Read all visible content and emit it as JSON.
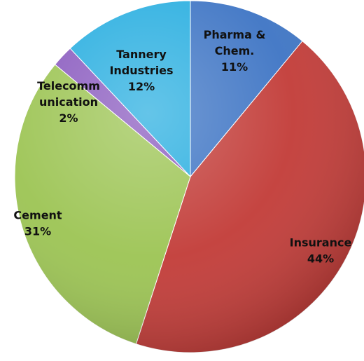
{
  "chart_data": {
    "type": "pie",
    "title": "",
    "slices": [
      {
        "label_lines": [
          "Pharma &",
          "Chem."
        ],
        "value_text": "11%",
        "value": 11,
        "color": "#3d74c4"
      },
      {
        "label_lines": [
          "Insurance"
        ],
        "value_text": "44%",
        "value": 44,
        "color": "#c23b37"
      },
      {
        "label_lines": [
          "Cement"
        ],
        "value_text": "31%",
        "value": 31,
        "color": "#9cc453"
      },
      {
        "label_lines": [
          "Telecomm",
          "unication"
        ],
        "value_text": "2%",
        "value": 2,
        "color": "#8a5bbf"
      },
      {
        "label_lines": [
          "Tannery",
          "Industries"
        ],
        "value_text": "12%",
        "value": 12,
        "color": "#28aee0"
      }
    ],
    "legend": "none"
  }
}
